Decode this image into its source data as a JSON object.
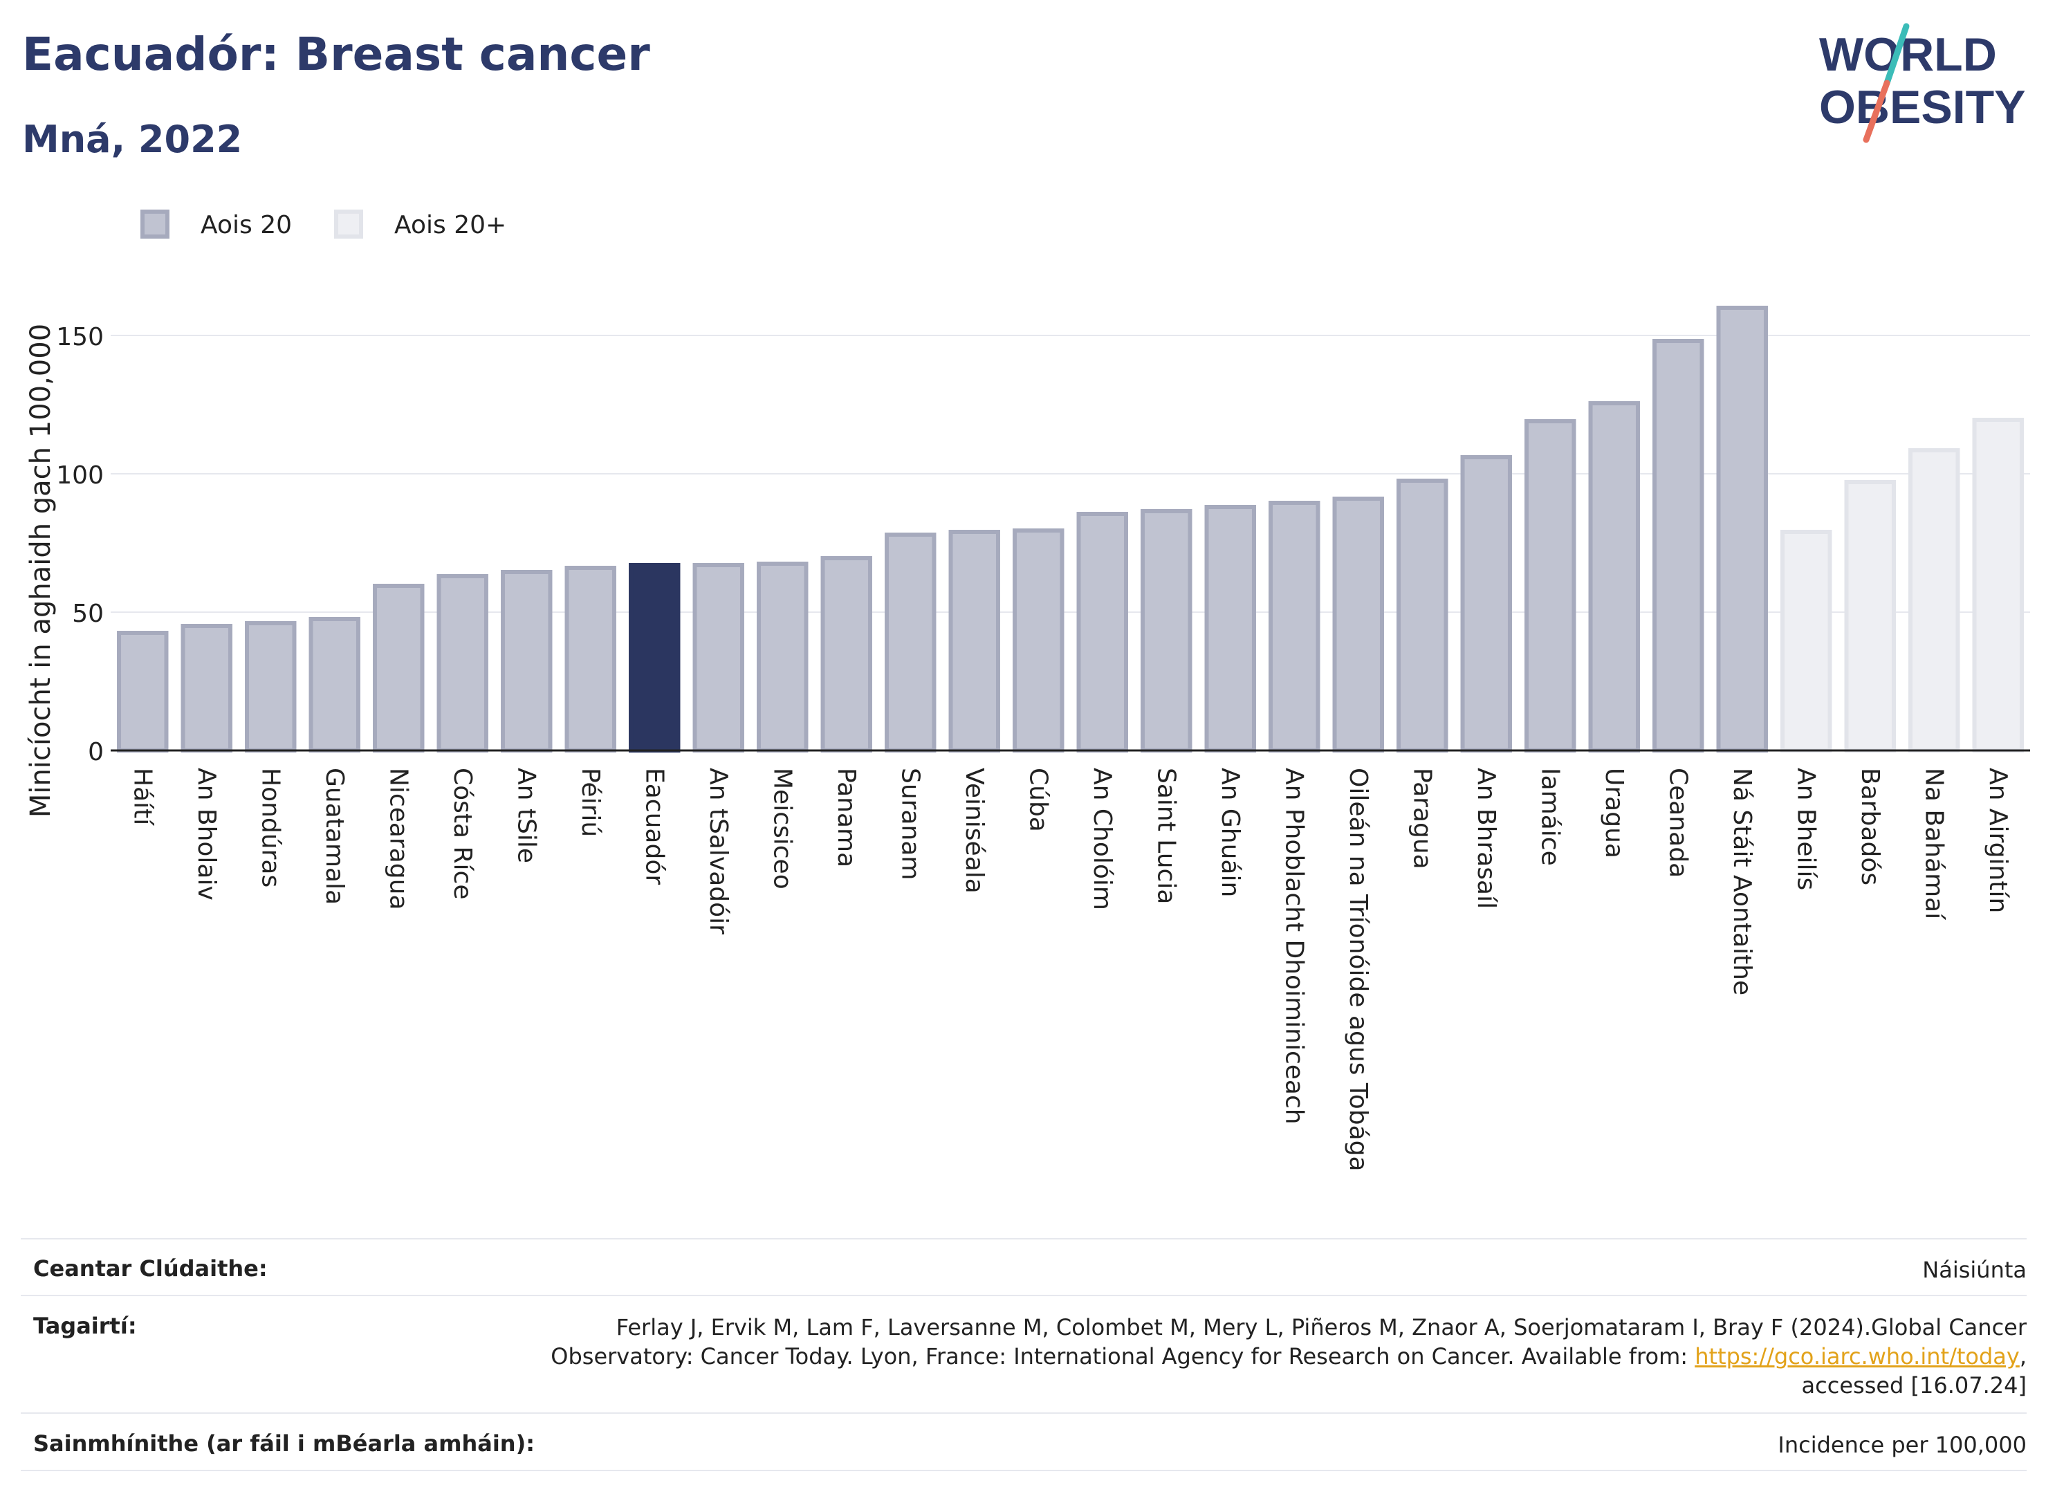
{
  "header": {
    "title": "Eacuadór: Breast cancer",
    "subtitle": "Mná, 2022",
    "logo_line1": "WORLD",
    "logo_line2": "OBESITY"
  },
  "colors": {
    "title": "#2d3a6a",
    "bar_age20_fill": "#c0c3d1",
    "bar_age20_stroke": "#a6aabd",
    "bar_highlight": "#2b3660",
    "bar_age20plus_fill": "#eeeff3",
    "bar_age20plus_stroke": "#e2e4ea",
    "logo_slash_teal": "#3bbcb8",
    "logo_slash_coral": "#e8705c",
    "link": "#e2a21a"
  },
  "chart_data": {
    "type": "bar",
    "ylabel": "Minicíocht in aghaidh gach 100,000",
    "ylim": [
      0,
      175
    ],
    "yticks": [
      0,
      50,
      100,
      150
    ],
    "grid": true,
    "legend_position": "top-left",
    "legend": [
      {
        "name": "Aois 20",
        "key": "age20"
      },
      {
        "name": "Aois 20+",
        "key": "age20plus"
      }
    ],
    "highlight": "Eacuadór",
    "categories": [
      "Háítí",
      "An Bholaiv",
      "Hondúras",
      "Guatamala",
      "Nicearagua",
      "Cósta Ríce",
      "An tSile",
      "Péiriú",
      "Eacuadór",
      "An tSalvadóir",
      "Meicsiceo",
      "Panama",
      "Suranam",
      "Veiniséala",
      "Cúba",
      "An Cholóim",
      "Saint Lucia",
      "An Ghuáin",
      "An Phoblacht Dhoiminiceach",
      "Oileán na Tríonóide agus Tobága",
      "Paragua",
      "An Bhrasaíl",
      "Iamáice",
      "Uragua",
      "Ceanada",
      "Ná Stáit Aontaithe",
      "An Bheilís",
      "Barbadós",
      "Na Bahámaí",
      "An Airgintín"
    ],
    "values": [
      42.5,
      45,
      46,
      47.5,
      59.5,
      63,
      64.5,
      66,
      67,
      67,
      67.5,
      69.5,
      78,
      79,
      79.5,
      85.5,
      86.5,
      88,
      89.5,
      91,
      97.5,
      106,
      119,
      125.5,
      148,
      160,
      79,
      97,
      108.5,
      119.5
    ],
    "groups": [
      "age20",
      "age20",
      "age20",
      "age20",
      "age20",
      "age20",
      "age20",
      "age20",
      "age20",
      "age20",
      "age20",
      "age20",
      "age20",
      "age20",
      "age20",
      "age20",
      "age20",
      "age20",
      "age20",
      "age20",
      "age20",
      "age20",
      "age20",
      "age20",
      "age20",
      "age20",
      "age20plus",
      "age20plus",
      "age20plus",
      "age20plus"
    ]
  },
  "footer": {
    "coverage_label": "Ceantar Clúdaithe:",
    "coverage_value": "Náisiúnta",
    "refs_label": "Tagairtí:",
    "refs_line1": "Ferlay J, Ervik M, Lam F, Laversanne M, Colombet M, Mery L, Piñeros M, Znaor A, Soerjomataram I, Bray F (2024).Global Cancer",
    "refs_line2_pre": "Observatory: Cancer Today. Lyon, France: International Agency for Research on Cancer. Available from: ",
    "refs_link": "https://gco.iarc.who.int/today",
    "refs_line2_post": ",",
    "refs_line3": "accessed [16.07.24]",
    "defs_label": "Sainmhínithe (ar fáil i mBéarla amháin):",
    "defs_value": "Incidence per 100,000"
  }
}
